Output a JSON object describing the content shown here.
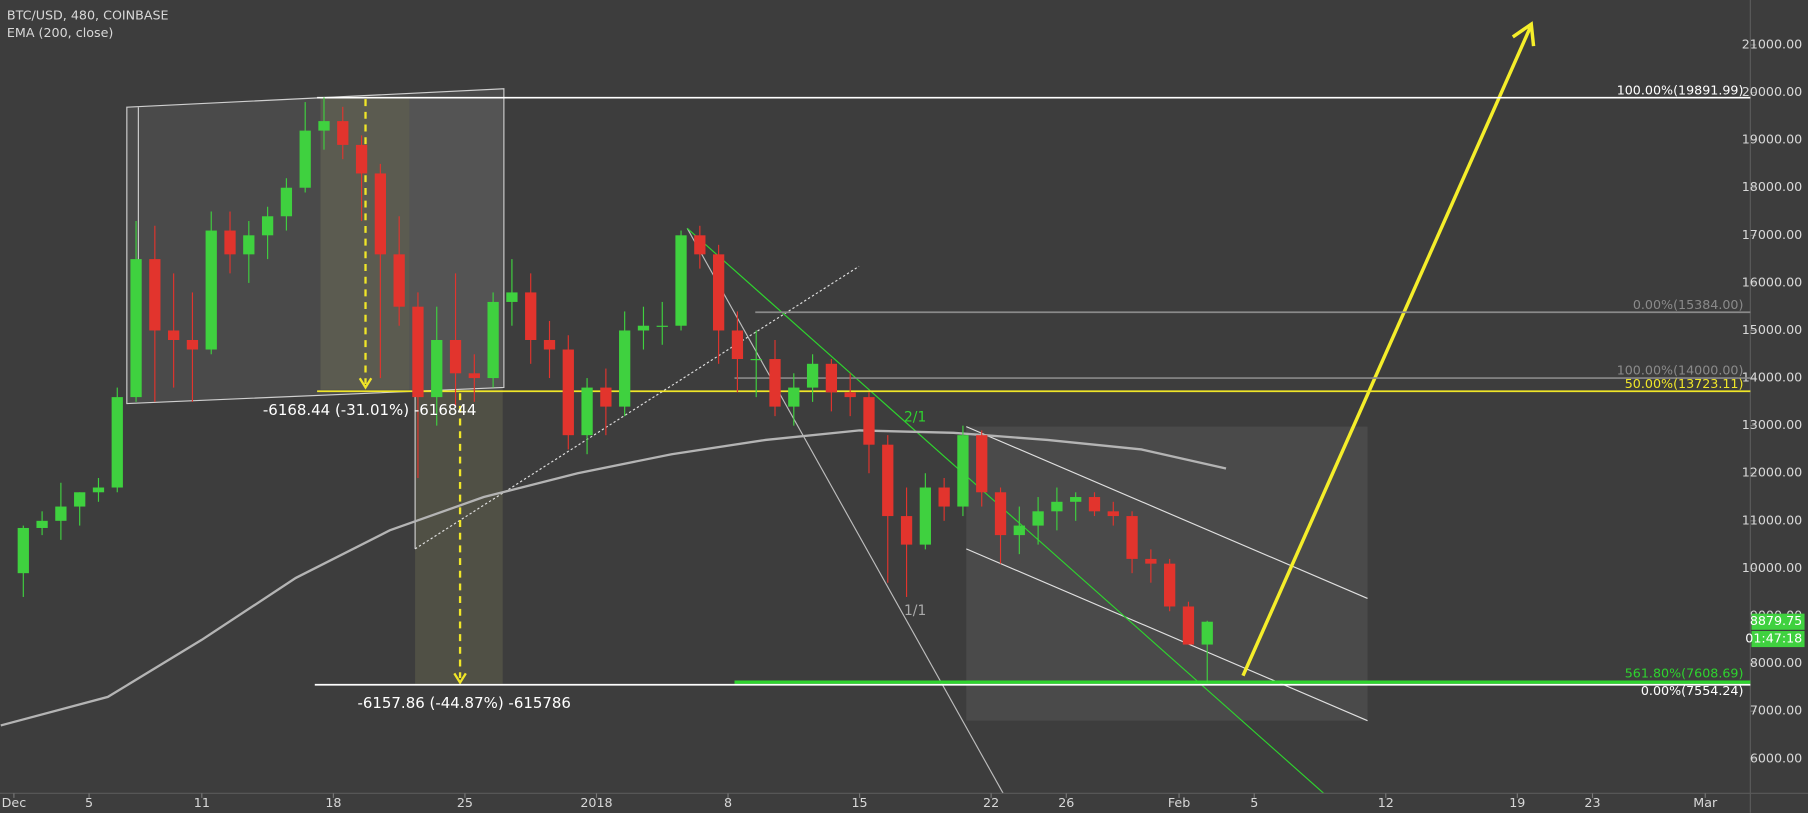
{
  "chart_data": {
    "type": "candlestick",
    "title": "BTC/USD, 480, COINBASE",
    "subtitle": "EMA (200, close)",
    "up_color": "#3fd13f",
    "down_color": "#e2342d",
    "x": [
      0,
      1,
      2,
      3,
      4,
      5,
      6,
      7,
      8,
      9,
      10,
      11,
      12,
      13,
      14,
      15,
      16,
      17,
      18,
      19,
      20,
      21,
      22,
      23,
      24,
      25,
      26,
      27,
      28,
      29,
      30,
      31,
      32,
      33,
      34,
      35,
      36,
      37,
      38,
      39,
      40,
      41,
      42,
      43,
      44,
      45,
      46,
      47,
      48,
      49,
      50,
      51,
      52,
      53,
      54,
      55,
      56,
      57,
      58,
      59,
      60,
      61,
      62,
      63
    ],
    "open": [
      9900,
      10850,
      11000,
      11300,
      11600,
      11700,
      13600,
      16500,
      15000,
      14800,
      14600,
      17100,
      16600,
      17000,
      17400,
      18000,
      19200,
      19400,
      18900,
      18300,
      16600,
      15500,
      13600,
      14800,
      14100,
      14000,
      15600,
      15800,
      14800,
      14600,
      12800,
      13800,
      13400,
      15000,
      15100,
      15100,
      17000,
      16600,
      15000,
      14400,
      14400,
      13400,
      13800,
      14300,
      13700,
      13600,
      12600,
      11100,
      10500,
      11700,
      11300,
      12800,
      11600,
      10700,
      10900,
      11200,
      11400,
      11500,
      11200,
      11100,
      10200,
      10100,
      9200,
      8400
    ],
    "high": [
      10900,
      11200,
      11800,
      11600,
      11900,
      13800,
      17300,
      17200,
      16200,
      15800,
      17500,
      17500,
      17300,
      17600,
      18200,
      19800,
      19900,
      19700,
      19100,
      18500,
      17400,
      15800,
      15500,
      16200,
      14500,
      15800,
      16500,
      16200,
      15200,
      14900,
      14000,
      14200,
      15400,
      15500,
      15600,
      17100,
      17200,
      16800,
      15400,
      15000,
      14800,
      14100,
      14500,
      14400,
      14100,
      13700,
      12800,
      11700,
      12000,
      11900,
      13000,
      12900,
      11700,
      11300,
      11500,
      11700,
      11600,
      11600,
      11400,
      11200,
      10400,
      10200,
      9300,
      8900
    ],
    "low": [
      9400,
      10700,
      10600,
      10900,
      11400,
      11600,
      13500,
      13500,
      13800,
      13500,
      14500,
      16200,
      16000,
      16500,
      17100,
      17900,
      18800,
      18600,
      17300,
      14000,
      15100,
      11900,
      13000,
      13400,
      13500,
      13800,
      15100,
      14300,
      14000,
      12500,
      12400,
      12800,
      13200,
      14600,
      14700,
      15000,
      16300,
      14300,
      13700,
      13600,
      13200,
      13000,
      13500,
      13300,
      13200,
      12000,
      9700,
      9400,
      10400,
      11000,
      11100,
      11300,
      10100,
      10300,
      10500,
      10800,
      11000,
      11100,
      10900,
      9900,
      9700,
      9100,
      8400,
      7600
    ],
    "close": [
      10850,
      11000,
      11300,
      11600,
      11700,
      13600,
      16500,
      15000,
      14800,
      14600,
      17100,
      16600,
      17000,
      17400,
      18000,
      19200,
      19400,
      18900,
      18300,
      16600,
      15500,
      13600,
      14800,
      14100,
      14000,
      15600,
      15800,
      14800,
      14600,
      12800,
      13800,
      13400,
      15000,
      15100,
      15100,
      17000,
      16600,
      15000,
      14400,
      14400,
      13400,
      13800,
      14300,
      13700,
      13600,
      12600,
      11100,
      10500,
      11700,
      11300,
      12800,
      11600,
      10700,
      10900,
      11200,
      11400,
      11500,
      11200,
      11100,
      10200,
      10100,
      9200,
      8400,
      8879.75
    ],
    "ema": {
      "color": "#b4b4b4",
      "x": [
        -0.7,
        5,
        10,
        15,
        20,
        25,
        30,
        35,
        40,
        45,
        50,
        55,
        60,
        64.5
      ],
      "values": [
        6700,
        7300,
        8500,
        9800,
        10800,
        11500,
        12000,
        12400,
        12700,
        12900,
        12850,
        12700,
        12500,
        12100
      ]
    },
    "countdown": "01:47:18",
    "xlim": [
      -0.74,
      92.4
    ],
    "xticks": [
      {
        "value": 0,
        "label": "Dec"
      },
      {
        "value": 4,
        "label": "5"
      },
      {
        "value": 10,
        "label": "11"
      },
      {
        "value": 17,
        "label": "18"
      },
      {
        "value": 24,
        "label": "25"
      },
      {
        "value": 31,
        "label": "2018"
      },
      {
        "value": 38,
        "label": "8"
      },
      {
        "value": 45,
        "label": "15"
      },
      {
        "value": 52,
        "label": "22"
      },
      {
        "value": 56,
        "label": "26"
      },
      {
        "value": 62,
        "label": "Feb"
      },
      {
        "value": 66,
        "label": "5"
      },
      {
        "value": 73,
        "label": "12"
      },
      {
        "value": 80,
        "label": "19"
      },
      {
        "value": 84,
        "label": "23"
      },
      {
        "value": 90,
        "label": "Mar"
      }
    ],
    "ylim": [
      5274,
      21945
    ],
    "yticks": [
      {
        "value": 6000,
        "label": "6000.00"
      },
      {
        "value": 7000,
        "label": "7000.00"
      },
      {
        "value": 8000,
        "label": "8000.00"
      },
      {
        "value": 9000,
        "label": "9000.00"
      },
      {
        "value": 10000,
        "label": "10000.00"
      },
      {
        "value": 11000,
        "label": "11000.00"
      },
      {
        "value": 12000,
        "label": "12000.00"
      },
      {
        "value": 13000,
        "label": "13000.00"
      },
      {
        "value": 14000,
        "label": "14000.00"
      },
      {
        "value": 15000,
        "label": "15000.00"
      },
      {
        "value": 16000,
        "label": "16000.00"
      },
      {
        "value": 17000,
        "label": "17000.00"
      },
      {
        "value": 18000,
        "label": "18000.00"
      },
      {
        "value": 19000,
        "label": "19000.00"
      },
      {
        "value": 20000,
        "label": "20000.00"
      },
      {
        "value": 21000,
        "label": "21000.00"
      }
    ],
    "levels": [
      {
        "value": 19891.99,
        "label": "100.00%(19891.99)",
        "color": "#ffffff"
      },
      {
        "value": 15384.0,
        "label": "0.00%(15384.00)",
        "color": "#8a8a8a"
      },
      {
        "value": 14000.0,
        "label": "100.00%(14000.00)",
        "color": "#8a8a8a"
      },
      {
        "value": 13723.11,
        "label": "50.00%(13723.11)",
        "color": "#f0e628"
      },
      {
        "value": 7608.69,
        "label": "561.80%(7608.69)",
        "color": "#2ed42e"
      },
      {
        "value": 7554.24,
        "label": "0.00%(7554.24)",
        "color": "#ffffff"
      }
    ],
    "annotations": [
      "-6168.44 (-31.01%) -616844",
      "-6157.86 (-44.87%) -615786",
      "2/1",
      "1/1"
    ]
  }
}
